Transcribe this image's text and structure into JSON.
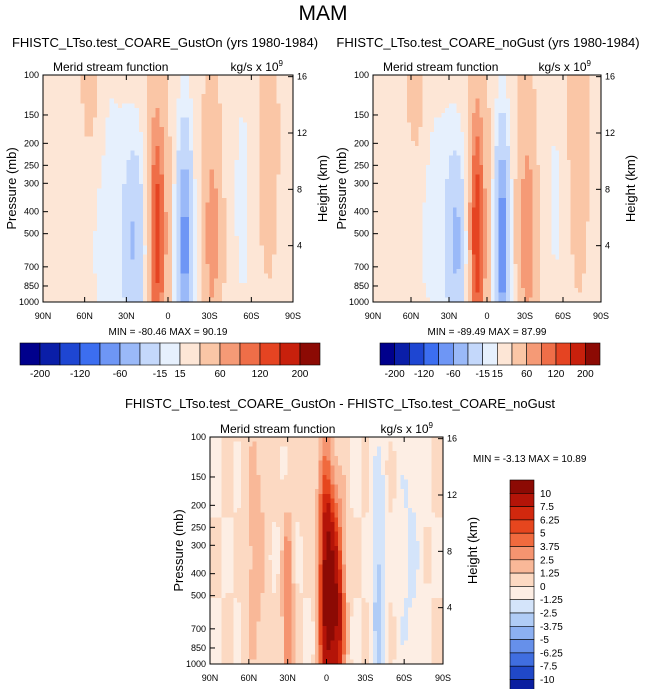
{
  "figure": {
    "title": "MAM"
  },
  "colorbar_small": {
    "labels": [
      "-200",
      "-120",
      "-60",
      "-15",
      "15",
      "60",
      "120",
      "200"
    ],
    "colors": [
      "#00008c",
      "#0a1ea8",
      "#1e46d2",
      "#3c6ef0",
      "#6e96f5",
      "#9ab9f8",
      "#c4d8fb",
      "#e6f0fd",
      "#fde6d6",
      "#fac6a6",
      "#f59a76",
      "#ef6e48",
      "#e54422",
      "#c8200c",
      "#8c0a04"
    ]
  },
  "colorbar_diff": {
    "labels": [
      "10",
      "7.5",
      "6.25",
      "5",
      "3.75",
      "2.5",
      "1.25",
      "0",
      "-1.25",
      "-2.5",
      "-3.75",
      "-5",
      "-6.25",
      "-7.5",
      "-10"
    ],
    "colors": [
      "#8c0a04",
      "#b41408",
      "#d2280e",
      "#e6461e",
      "#f06a3e",
      "#f59470",
      "#f9b898",
      "#fcd9c2",
      "#fdeee4",
      "#d4e4fa",
      "#b0ccf6",
      "#8cb0f2",
      "#6690ea",
      "#406ee0",
      "#2048c8",
      "#0a1ea0"
    ]
  },
  "chart_data": [
    {
      "type": "heatmap",
      "title": "FHISTC_LTso.test_COARE_GustOn (yrs 1980-1984)",
      "subtitle_left": "Merid stream function",
      "subtitle_right": "kg/s x 10",
      "subtitle_right_exp": "9",
      "xlabel": "",
      "ylabel": "Pressure (mb)",
      "ylabel_right": "Height (km)",
      "x_ticks": [
        "90N",
        "60N",
        "30N",
        "0",
        "30S",
        "60S",
        "90S"
      ],
      "y_ticks": [
        "100",
        "150",
        "200",
        "250",
        "300",
        "400",
        "500",
        "700",
        "850",
        "1000"
      ],
      "y_ticks_right": [
        "16",
        "12",
        "8",
        "4"
      ],
      "stats": "MIN = -80.46   MAX =  90.19",
      "min": -80.46,
      "max": 90.19,
      "features": [
        {
          "lat": 24,
          "p": 550,
          "value": -50
        },
        {
          "lat": 8,
          "p": 500,
          "value": 82
        },
        {
          "lat": -12,
          "p": 560,
          "value": -80.46
        },
        {
          "lat": -32,
          "p": 500,
          "value": 40
        }
      ]
    },
    {
      "type": "heatmap",
      "title": "FHISTC_LTso.test_COARE_noGust (yrs 1980-1984)",
      "subtitle_left": "Merid stream function",
      "subtitle_right": "kg/s x 10",
      "subtitle_right_exp": "9",
      "xlabel": "",
      "ylabel": "Pressure (mb)",
      "ylabel_right": "Height (km)",
      "x_ticks": [
        "90N",
        "60N",
        "30N",
        "0",
        "30S",
        "60S",
        "90S"
      ],
      "y_ticks": [
        "100",
        "150",
        "200",
        "250",
        "300",
        "400",
        "500",
        "700",
        "850",
        "1000"
      ],
      "y_ticks_right": [
        "16",
        "12",
        "8",
        "4"
      ],
      "stats": "MIN = -89.49   MAX =  87.99",
      "min": -89.49,
      "max": 87.99,
      "features": [
        {
          "lat": 24,
          "p": 550,
          "value": -55
        },
        {
          "lat": 8,
          "p": 500,
          "value": 87.99
        },
        {
          "lat": -12,
          "p": 560,
          "value": -89.49
        },
        {
          "lat": -32,
          "p": 500,
          "value": 45
        }
      ]
    },
    {
      "type": "heatmap",
      "title": "FHISTC_LTso.test_COARE_GustOn - FHISTC_LTso.test_COARE_noGust",
      "subtitle_left": "Merid stream function",
      "subtitle_right": "kg/s x 10",
      "subtitle_right_exp": "9",
      "xlabel": "",
      "ylabel": "Pressure (mb)",
      "ylabel_right": "Height (km)",
      "x_ticks": [
        "90N",
        "60N",
        "30N",
        "0",
        "30S",
        "60S",
        "90S"
      ],
      "y_ticks": [
        "100",
        "150",
        "200",
        "250",
        "300",
        "400",
        "500",
        "700",
        "850",
        "1000"
      ],
      "y_ticks_right": [
        "16",
        "12",
        "8",
        "4"
      ],
      "stats": "MIN =  -3.13   MAX =  10.89",
      "min": -3.13,
      "max": 10.89,
      "features": [
        {
          "lat": 0,
          "p": 450,
          "value": 10.89
        },
        {
          "lat": -8,
          "p": 600,
          "value": 9
        },
        {
          "lat": 30,
          "p": 600,
          "value": 4
        },
        {
          "lat": -40,
          "p": 450,
          "value": -3.13
        }
      ]
    }
  ]
}
